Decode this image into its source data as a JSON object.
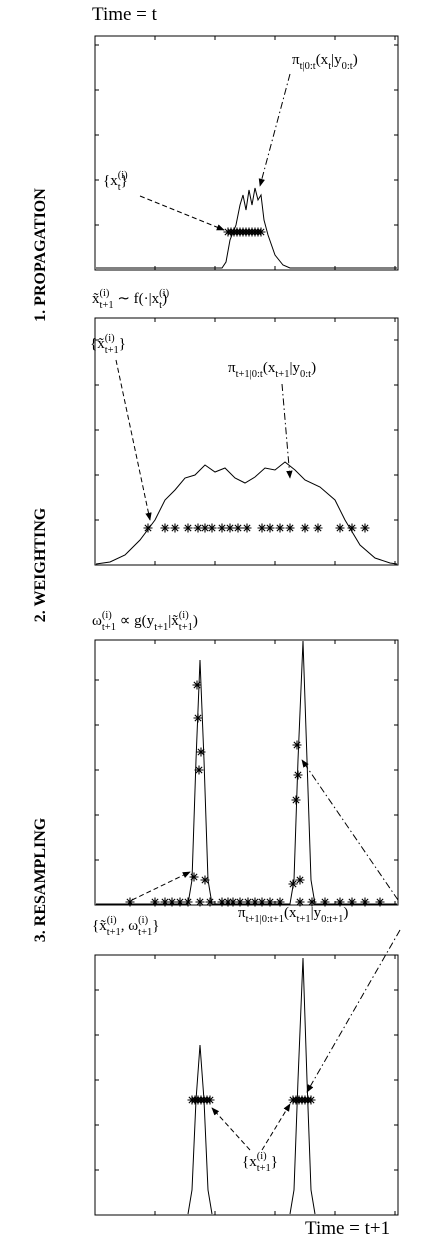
{
  "header": {
    "time_start": "Time = t",
    "time_end": "Time = t+1"
  },
  "steps": [
    "1. PROPAGATION",
    "2. WEIGHTING",
    "3. RESAMPLING"
  ],
  "labels": {
    "pi_filter_t": [
      "π",
      "t|0:t",
      "(x",
      "t",
      "|y",
      "0:t",
      ")"
    ],
    "particles_t": [
      "{x",
      "(i)",
      "t",
      "}"
    ],
    "proposal": [
      "x̃",
      "(i)",
      "t+1",
      " ∼ f(·|x",
      "(i)",
      "t",
      ")"
    ],
    "pi_predict": [
      "π",
      "t+1|0:t",
      "(x",
      "t+1",
      "|y",
      "0:t",
      ")"
    ],
    "particles_pred": [
      "{x̃",
      "(i)",
      "t+1",
      "}"
    ],
    "weights": [
      "ω",
      "(i)",
      "t+1",
      " ∝ g(y",
      "t+1",
      "|x̃",
      "(i)",
      "t+1",
      ")"
    ],
    "weighted_particles": [
      "{x̃",
      "(i)",
      "t+1",
      ", ω",
      "(i)",
      "t+1",
      "}"
    ],
    "pi_filter_t1": [
      "π",
      "t+1|0:t+1",
      "(x",
      "t+1",
      "|y",
      "0:t+1",
      ")"
    ],
    "particles_t1": [
      "{x",
      "(i)",
      "t+1",
      "}"
    ]
  }
}
